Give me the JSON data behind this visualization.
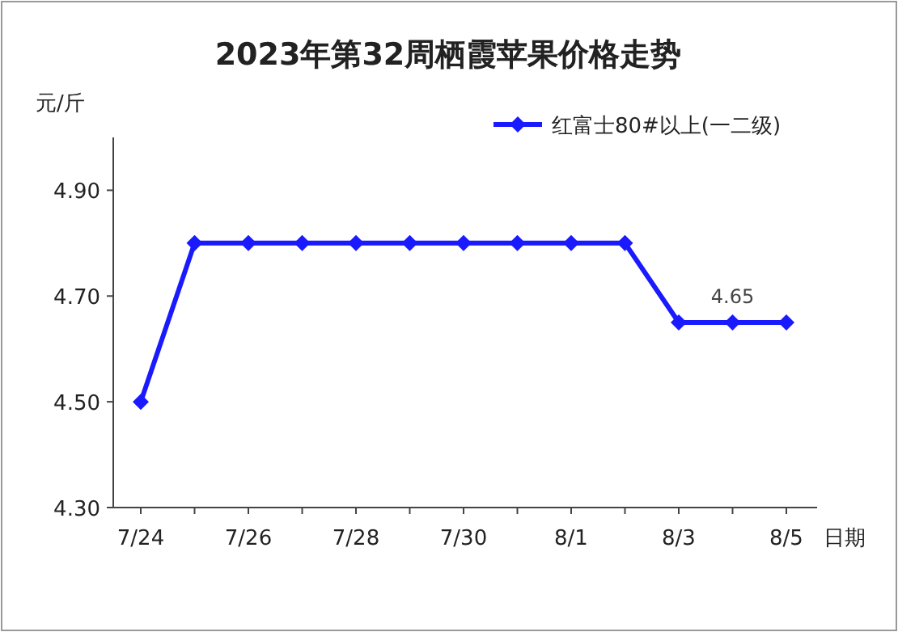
{
  "chart_data": {
    "type": "line",
    "title": "2023年第32周栖霞苹果价格走势",
    "xlabel": "日期",
    "ylabel": "元/斤",
    "categories": [
      "7/24",
      null,
      "7/26",
      null,
      "7/28",
      null,
      "7/30",
      null,
      "8/1",
      null,
      "8/3",
      null,
      "8/5"
    ],
    "series": [
      {
        "name": "红富士80#以上(一二级)",
        "color": "#1a1aff",
        "values": [
          4.5,
          4.8,
          4.8,
          4.8,
          4.8,
          4.8,
          4.8,
          4.8,
          4.8,
          4.8,
          4.65,
          4.65,
          4.65
        ],
        "value_labels": [
          null,
          null,
          null,
          null,
          null,
          null,
          null,
          null,
          null,
          null,
          null,
          "4.65",
          null
        ]
      }
    ],
    "ylim": [
      4.3,
      5.0
    ],
    "yticks": [
      {
        "value": 4.3,
        "label": "4.30"
      },
      {
        "value": 4.5,
        "label": "4.50"
      },
      {
        "value": 4.7,
        "label": "4.70"
      },
      {
        "value": 4.9,
        "label": "4.90"
      }
    ],
    "legend": "top right",
    "marker": "diamond"
  }
}
